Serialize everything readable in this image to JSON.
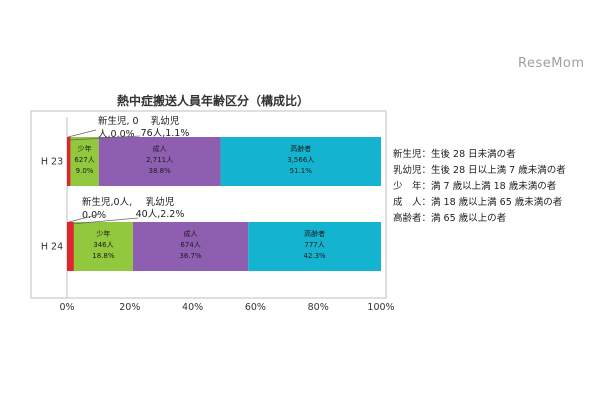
{
  "watermark": "ReseMom",
  "chart_data": {
    "type": "bar",
    "orientation": "horizontal",
    "stacked": true,
    "percent": true,
    "title": "熱中症搬送人員年齢区分（構成比）",
    "categories": [
      "H 23",
      "H 24"
    ],
    "xlim": [
      0,
      100
    ],
    "xticks": [
      "0%",
      "20%",
      "40%",
      "60%",
      "80%",
      "100%"
    ],
    "grid": false,
    "series": [
      {
        "name": "新生児",
        "color": "#5b2f86",
        "values": [
          0.0,
          0.0
        ],
        "labels": [
          "",
          ""
        ]
      },
      {
        "name": "乳幼児",
        "color": "#e0262a",
        "values": [
          1.1,
          2.2
        ],
        "labels": [
          "",
          ""
        ]
      },
      {
        "name": "少年",
        "color": "#92c83e",
        "values": [
          9.0,
          18.8
        ],
        "labels": [
          "少年\n627人\n9.0%",
          "少年\n346人\n18.8%"
        ]
      },
      {
        "name": "成人",
        "color": "#8e5fb0",
        "values": [
          38.8,
          36.7
        ],
        "labels": [
          "成人\n2,711人\n38.8%",
          "成人\n674人\n36.7%"
        ]
      },
      {
        "name": "高齢者",
        "color": "#14b3cf",
        "values": [
          51.1,
          42.3
        ],
        "labels": [
          "高齢者\n3,566人\n51.1%",
          "高齢者\n777人\n42.3%"
        ]
      }
    ],
    "annotations": [
      {
        "category": "H 23",
        "newborn": "新生児, 0\n人,0.0%",
        "infant": "乳幼児\n76人,1.1%"
      },
      {
        "category": "H 24",
        "newborn": "新生児,0人,\n0.0%",
        "infant": "乳幼児\n40人,2.2%"
      }
    ]
  },
  "legend_notes": [
    "新生児：生後 28 日未満の者",
    "乳幼児：生後 28 日以上満 7 歳未満の者",
    "少　年：満 7 歳以上満 18 歳未満の者",
    "成　人：満 18 歳以上満 65 歳未満の者",
    "高齢者：満 65 歳以上の者"
  ]
}
